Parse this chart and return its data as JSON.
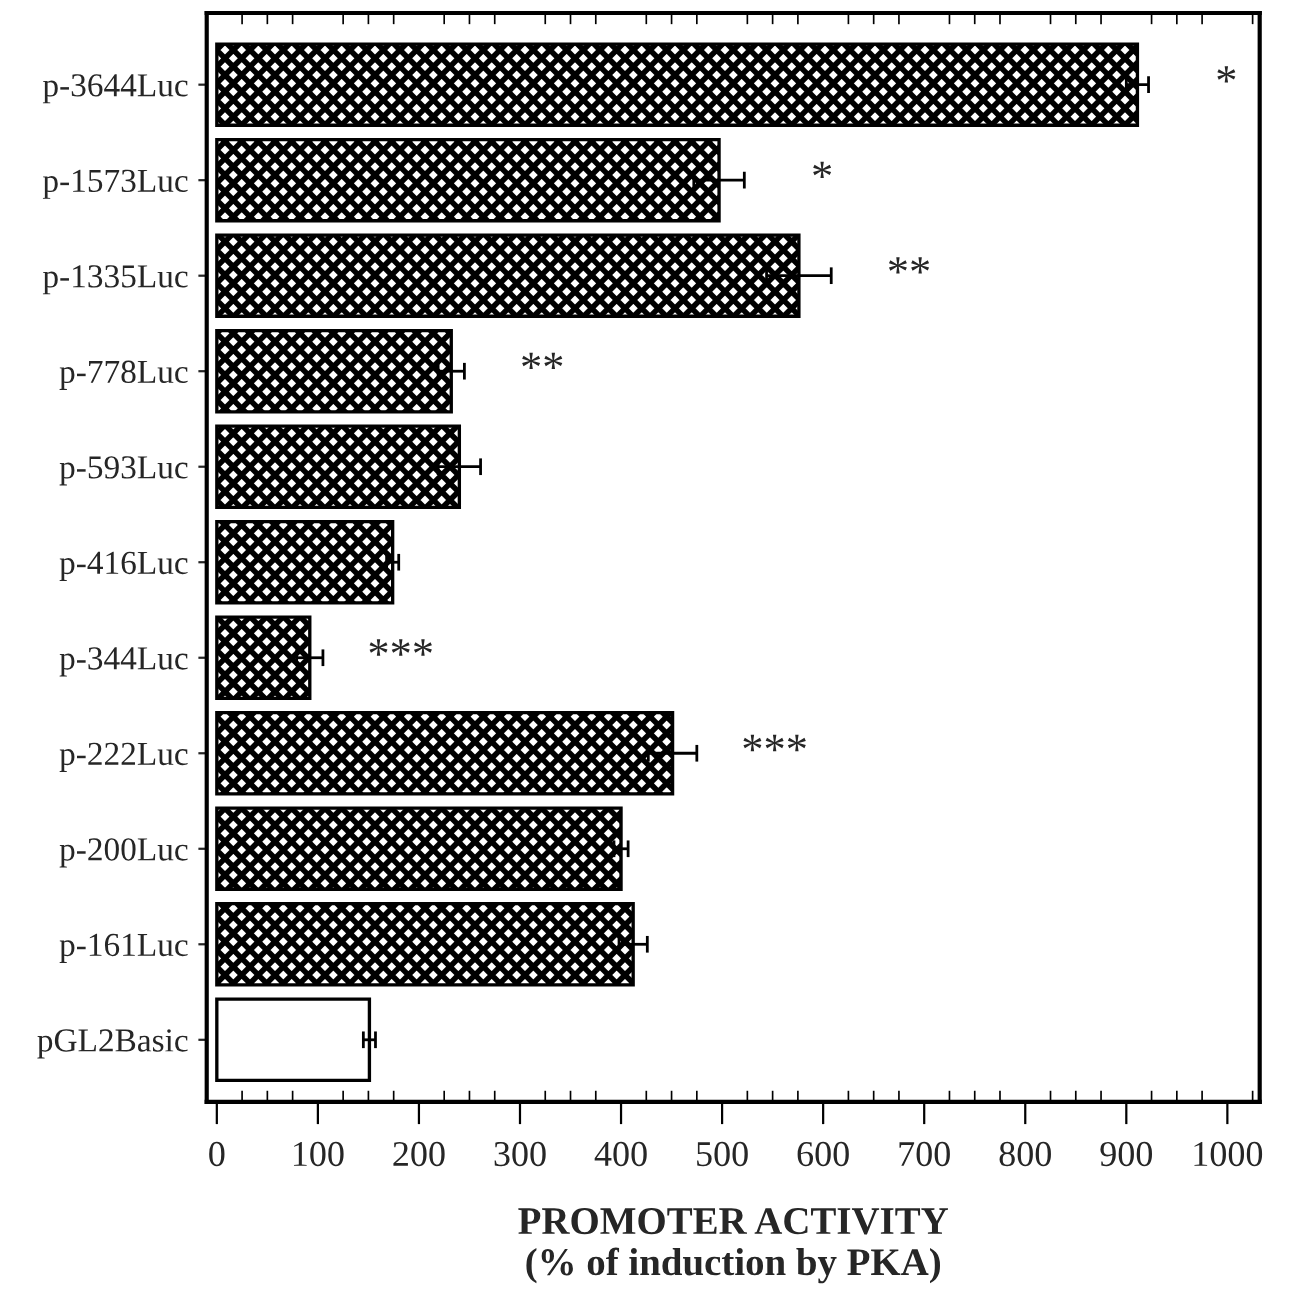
{
  "chart_data": {
    "type": "bar",
    "orientation": "horizontal",
    "xlabel": "PROMOTER ACTIVITY\n(% of induction by PKA)",
    "categories": [
      "p-3644Luc",
      "p-1573Luc",
      "p-1335Luc",
      "p-778Luc",
      "p-593Luc",
      "p-416Luc",
      "p-344Luc",
      "p-222Luc",
      "p-200Luc",
      "p-161Luc",
      "pGL2Basic"
    ],
    "values": [
      911,
      497,
      576,
      232,
      240,
      174,
      92,
      451,
      400,
      412,
      151
    ],
    "errors": [
      11,
      25,
      32,
      13,
      21,
      6,
      13,
      24,
      7,
      14,
      6
    ],
    "colors": [
      "#000000",
      "#000000",
      "#000000",
      "#000000",
      "#000000",
      "#000000",
      "#000000",
      "#000000",
      "#000000",
      "#000000",
      "#ffffff"
    ],
    "xlim": [
      -10,
      1032
    ],
    "xticks": [
      0,
      100,
      200,
      300,
      400,
      500,
      600,
      700,
      800,
      900,
      1000
    ],
    "annotations": [
      {
        "text": "*",
        "x": 911,
        "y": "p-3644Luc"
      },
      {
        "text": "*",
        "x": 497,
        "y": "p-1573Luc"
      },
      {
        "text": "**",
        "x": 576,
        "y": "p-1335Luc"
      },
      {
        "text": "**",
        "x": 232,
        "y": "p-778Luc"
      },
      {
        "text": "***",
        "x": 92,
        "y": "p-344Luc"
      },
      {
        "text": "***",
        "x": 451,
        "y": "p-222Luc"
      }
    ],
    "grid": false,
    "legend": false
  }
}
